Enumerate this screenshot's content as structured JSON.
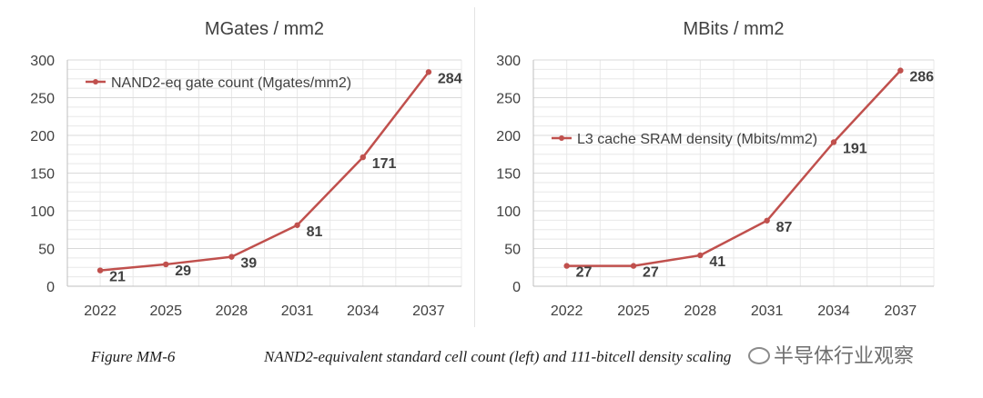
{
  "chart_data": [
    {
      "type": "line",
      "title": "MGates / mm2",
      "categories": [
        "2022",
        "2025",
        "2028",
        "2031",
        "2034",
        "2037"
      ],
      "series": [
        {
          "name": "NAND2-eq gate count (Mgates/mm2)",
          "values": [
            21,
            29,
            39,
            81,
            171,
            284
          ]
        }
      ],
      "yticks": [
        "0",
        "50",
        "100",
        "150",
        "200",
        "250",
        "300"
      ],
      "ylim": [
        0,
        300
      ],
      "grid": true,
      "legend": "top-left",
      "color": "#c0504d"
    },
    {
      "type": "line",
      "title": "MBits / mm2",
      "categories": [
        "2022",
        "2025",
        "2028",
        "2031",
        "2034",
        "2037"
      ],
      "series": [
        {
          "name": "L3 cache SRAM density (Mbits/mm2)",
          "values": [
            27,
            27,
            41,
            87,
            191,
            286
          ]
        }
      ],
      "yticks": [
        "0",
        "50",
        "100",
        "150",
        "200",
        "250",
        "300"
      ],
      "ylim": [
        0,
        300
      ],
      "grid": true,
      "legend": "top-left",
      "color": "#c0504d"
    }
  ],
  "caption": {
    "label": "Figure MM-6",
    "text": "NAND2-equivalent standard cell count (left) and 111-bitcell density scaling"
  },
  "watermark": "半导体行业观察"
}
